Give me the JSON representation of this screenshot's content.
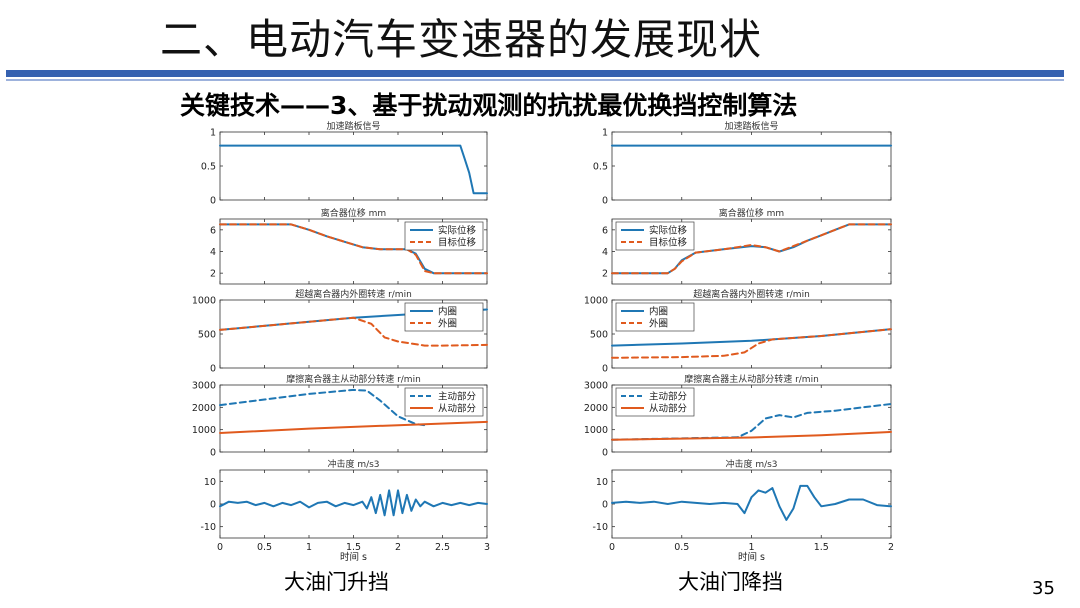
{
  "slide": {
    "title": "二、电动汽车变速器的发展现状",
    "subtitle": "关键技术——3、基于扰动观测的抗扰最优换挡控制算法",
    "captions": [
      "大油门升挡",
      "大油门降挡"
    ],
    "page_number": "35"
  },
  "colors": {
    "blue": "#1f77b4",
    "orange": "#e05a1e",
    "title_bar": "#3561b0"
  },
  "chart_data": [
    {
      "figure": "left",
      "type": "line",
      "xlim": [
        0,
        3
      ],
      "xticks": [
        "0",
        "0.5",
        "1",
        "1.5",
        "2",
        "2.5",
        "3"
      ],
      "xlabel": "时间 s",
      "caption": "大油门升挡",
      "subplots": [
        {
          "title": "加速踏板信号",
          "ylim": [
            0,
            1
          ],
          "yticks": [
            "0",
            "0.5",
            "1"
          ],
          "series": [
            {
              "color": "blue",
              "dash": false,
              "x": [
                0,
                2.7,
                2.75,
                2.8,
                2.85,
                2.9,
                3.0
              ],
              "y": [
                0.8,
                0.8,
                0.6,
                0.4,
                0.1,
                0.1,
                0.1
              ]
            }
          ]
        },
        {
          "title": "离合器位移 mm",
          "ylim": [
            1,
            7
          ],
          "yticks": [
            "2",
            "4",
            "6"
          ],
          "legend": {
            "position": "top-right",
            "entries": [
              "实际位移",
              "目标位移"
            ]
          },
          "series": [
            {
              "name": "实际位移",
              "color": "blue",
              "dash": false,
              "x": [
                0,
                0.8,
                1.0,
                1.2,
                1.4,
                1.6,
                1.8,
                2.0,
                2.1,
                2.2,
                2.3,
                2.4,
                2.6,
                3.0
              ],
              "y": [
                6.5,
                6.5,
                6.0,
                5.4,
                4.9,
                4.4,
                4.2,
                4.2,
                4.2,
                3.8,
                2.4,
                2.0,
                2.0,
                2.0
              ]
            },
            {
              "name": "目标位移",
              "color": "orange",
              "dash": true,
              "x": [
                0,
                0.8,
                1.0,
                1.2,
                1.4,
                1.6,
                1.8,
                2.0,
                2.1,
                2.2,
                2.3,
                2.4,
                2.6,
                3.0
              ],
              "y": [
                6.5,
                6.5,
                6.0,
                5.4,
                4.9,
                4.4,
                4.2,
                4.2,
                4.2,
                3.7,
                2.2,
                2.0,
                2.0,
                2.0
              ]
            }
          ]
        },
        {
          "title": "超越离合器内外圈转速 r/min",
          "ylim": [
            0,
            1000
          ],
          "yticks": [
            "0",
            "500",
            "1000"
          ],
          "legend": {
            "position": "top-right",
            "entries": [
              "内圈",
              "外圈"
            ]
          },
          "series": [
            {
              "name": "内圈",
              "color": "blue",
              "dash": false,
              "x": [
                0,
                1.0,
                1.5,
                2.0,
                2.5,
                3.0
              ],
              "y": [
                560,
                680,
                740,
                780,
                820,
                860
              ]
            },
            {
              "name": "外圈",
              "color": "orange",
              "dash": true,
              "x": [
                0,
                1.0,
                1.5,
                1.7,
                1.85,
                2.0,
                2.3,
                2.5,
                3.0
              ],
              "y": [
                560,
                680,
                740,
                650,
                450,
                390,
                330,
                330,
                340
              ]
            }
          ]
        },
        {
          "title": "摩擦离合器主从动部分转速 r/min",
          "ylim": [
            0,
            3000
          ],
          "yticks": [
            "0",
            "1000",
            "2000",
            "3000"
          ],
          "legend": {
            "position": "top-right",
            "entries": [
              "主动部分",
              "从动部分"
            ]
          },
          "series": [
            {
              "name": "主动部分",
              "color": "blue",
              "dash": true,
              "x": [
                0,
                0.5,
                1.0,
                1.5,
                1.65,
                1.8,
                2.0,
                2.2,
                2.3
              ],
              "y": [
                2100,
                2350,
                2600,
                2780,
                2750,
                2300,
                1600,
                1250,
                1200
              ]
            },
            {
              "name": "从动部分",
              "color": "orange",
              "dash": false,
              "x": [
                0,
                1.0,
                2.0,
                3.0
              ],
              "y": [
                850,
                1050,
                1200,
                1350
              ]
            }
          ]
        },
        {
          "title": "冲击度 m/s3",
          "ylim": [
            -15,
            15
          ],
          "yticks": [
            "-10",
            "0",
            "10"
          ],
          "series": [
            {
              "color": "blue",
              "dash": false,
              "x": [
                0,
                0.1,
                0.2,
                0.3,
                0.4,
                0.5,
                0.6,
                0.7,
                0.8,
                0.9,
                1.0,
                1.1,
                1.2,
                1.3,
                1.4,
                1.5,
                1.6,
                1.65,
                1.7,
                1.75,
                1.8,
                1.85,
                1.9,
                1.95,
                2.0,
                2.05,
                2.1,
                2.15,
                2.2,
                2.25,
                2.3,
                2.4,
                2.5,
                2.6,
                2.7,
                2.8,
                2.9,
                3.0
              ],
              "y": [
                -1,
                1,
                0.5,
                1,
                -0.5,
                0.5,
                -1,
                0.5,
                -0.5,
                1,
                -1.5,
                0.5,
                1,
                -1,
                0.5,
                -0.5,
                1,
                -2,
                3,
                -4,
                4,
                -5,
                6,
                -5,
                6,
                -4,
                4,
                -3,
                2,
                -1,
                1,
                -1,
                0.5,
                -0.5,
                0.5,
                -0.5,
                0.5,
                0
              ]
            }
          ]
        }
      ]
    },
    {
      "figure": "right",
      "type": "line",
      "xlim": [
        0,
        2
      ],
      "xticks": [
        "0",
        "0.5",
        "1",
        "1.5",
        "2"
      ],
      "xlabel": "时间 s",
      "caption": "大油门降挡",
      "subplots": [
        {
          "title": "加速踏板信号",
          "ylim": [
            0,
            1
          ],
          "yticks": [
            "0",
            "0.5",
            "1"
          ],
          "series": [
            {
              "color": "blue",
              "dash": false,
              "x": [
                0,
                2.0
              ],
              "y": [
                0.8,
                0.8
              ]
            }
          ]
        },
        {
          "title": "离合器位移 mm",
          "ylim": [
            1,
            7
          ],
          "yticks": [
            "2",
            "4",
            "6"
          ],
          "legend": {
            "position": "top-left",
            "entries": [
              "实际位移",
              "目标位移"
            ]
          },
          "series": [
            {
              "name": "实际位移",
              "color": "blue",
              "dash": false,
              "x": [
                0,
                0.4,
                0.45,
                0.5,
                0.6,
                0.8,
                1.0,
                1.1,
                1.2,
                1.3,
                1.4,
                1.5,
                1.6,
                1.7,
                1.8,
                2.0
              ],
              "y": [
                2.0,
                2.0,
                2.4,
                3.2,
                3.9,
                4.2,
                4.5,
                4.4,
                4.0,
                4.4,
                5.0,
                5.5,
                6.0,
                6.5,
                6.5,
                6.5
              ]
            },
            {
              "name": "目标位移",
              "color": "orange",
              "dash": true,
              "x": [
                0,
                0.4,
                0.45,
                0.5,
                0.6,
                0.8,
                1.0,
                1.1,
                1.2,
                1.3,
                1.4,
                1.5,
                1.6,
                1.7,
                1.8,
                2.0
              ],
              "y": [
                2.0,
                2.0,
                2.4,
                3.1,
                3.9,
                4.2,
                4.6,
                4.4,
                4.0,
                4.5,
                5.0,
                5.5,
                6.0,
                6.5,
                6.5,
                6.5
              ]
            }
          ]
        },
        {
          "title": "超越离合器内外圈转速 r/min",
          "ylim": [
            0,
            1000
          ],
          "yticks": [
            "0",
            "500",
            "1000"
          ],
          "legend": {
            "position": "top-left",
            "entries": [
              "内圈",
              "外圈"
            ]
          },
          "series": [
            {
              "name": "内圈",
              "color": "blue",
              "dash": false,
              "x": [
                0,
                0.5,
                1.0,
                1.5,
                2.0
              ],
              "y": [
                330,
                360,
                400,
                470,
                570
              ]
            },
            {
              "name": "外圈",
              "color": "orange",
              "dash": true,
              "x": [
                0,
                0.5,
                0.8,
                0.95,
                1.05,
                1.15,
                1.5,
                2.0
              ],
              "y": [
                150,
                160,
                180,
                230,
                360,
                420,
                470,
                570
              ]
            }
          ]
        },
        {
          "title": "摩擦离合器主从动部分转速 r/min",
          "ylim": [
            0,
            3000
          ],
          "yticks": [
            "0",
            "1000",
            "2000",
            "3000"
          ],
          "legend": {
            "position": "top-left",
            "entries": [
              "主动部分",
              "从动部分"
            ]
          },
          "series": [
            {
              "name": "主动部分",
              "color": "blue",
              "dash": true,
              "x": [
                0,
                0.9,
                1.0,
                1.1,
                1.2,
                1.3,
                1.4,
                1.6,
                1.8,
                2.0
              ],
              "y": [
                550,
                660,
                950,
                1500,
                1650,
                1550,
                1750,
                1850,
                2000,
                2150
              ]
            },
            {
              "name": "从动部分",
              "color": "orange",
              "dash": false,
              "x": [
                0,
                1.0,
                1.5,
                2.0
              ],
              "y": [
                550,
                650,
                750,
                900
              ]
            }
          ]
        },
        {
          "title": "冲击度 m/s3",
          "ylim": [
            -15,
            15
          ],
          "yticks": [
            "-10",
            "0",
            "10"
          ],
          "series": [
            {
              "color": "blue",
              "dash": false,
              "x": [
                0,
                0.1,
                0.2,
                0.3,
                0.4,
                0.5,
                0.6,
                0.7,
                0.8,
                0.9,
                0.95,
                1.0,
                1.05,
                1.1,
                1.15,
                1.2,
                1.25,
                1.3,
                1.35,
                1.4,
                1.45,
                1.5,
                1.6,
                1.7,
                1.8,
                1.9,
                2.0
              ],
              "y": [
                0.5,
                1,
                0.5,
                1,
                0,
                1,
                0.5,
                0,
                0.5,
                0,
                -4,
                3,
                6,
                5,
                7,
                -1,
                -7,
                -2,
                8,
                8,
                3,
                -1,
                0,
                2,
                2,
                -0.5,
                -1
              ]
            }
          ]
        }
      ]
    }
  ]
}
